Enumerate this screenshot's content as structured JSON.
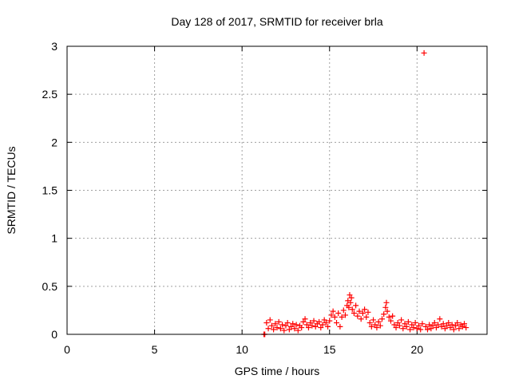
{
  "chart_data": {
    "type": "scatter",
    "title": "Day 128 of 2017, SRMTID for receiver brla",
    "xlabel": "GPS time / hours",
    "ylabel": "SRMTID / TECUs",
    "xlim": [
      0,
      24
    ],
    "ylim": [
      0,
      3
    ],
    "xticks": [
      0,
      5,
      10,
      15,
      20
    ],
    "yticks": [
      0,
      0.5,
      1,
      1.5,
      2,
      2.5,
      3
    ],
    "ytick_labels": [
      "0",
      "0.5",
      "1",
      "1.5",
      "2",
      "2.5",
      "3"
    ],
    "grid": true,
    "marker": "+",
    "series": [
      {
        "name": "SRMTID",
        "color": "#ff0000",
        "points": [
          [
            11.25,
            0.0
          ],
          [
            11.3,
            0.0
          ],
          [
            11.4,
            0.12
          ],
          [
            11.5,
            0.06
          ],
          [
            11.6,
            0.15
          ],
          [
            11.7,
            0.09
          ],
          [
            11.8,
            0.05
          ],
          [
            11.9,
            0.11
          ],
          [
            12.0,
            0.07
          ],
          [
            12.1,
            0.13
          ],
          [
            12.2,
            0.06
          ],
          [
            12.3,
            0.1
          ],
          [
            12.4,
            0.04
          ],
          [
            12.5,
            0.09
          ],
          [
            12.6,
            0.12
          ],
          [
            12.7,
            0.05
          ],
          [
            12.8,
            0.08
          ],
          [
            12.9,
            0.11
          ],
          [
            13.0,
            0.06
          ],
          [
            13.1,
            0.1
          ],
          [
            13.2,
            0.04
          ],
          [
            13.3,
            0.09
          ],
          [
            13.4,
            0.07
          ],
          [
            13.5,
            0.13
          ],
          [
            13.6,
            0.16
          ],
          [
            13.7,
            0.1
          ],
          [
            13.8,
            0.07
          ],
          [
            13.9,
            0.12
          ],
          [
            14.0,
            0.09
          ],
          [
            14.1,
            0.14
          ],
          [
            14.2,
            0.08
          ],
          [
            14.3,
            0.11
          ],
          [
            14.4,
            0.13
          ],
          [
            14.5,
            0.07
          ],
          [
            14.6,
            0.1
          ],
          [
            14.7,
            0.15
          ],
          [
            14.8,
            0.12
          ],
          [
            14.9,
            0.08
          ],
          [
            15.0,
            0.14
          ],
          [
            15.1,
            0.2
          ],
          [
            15.2,
            0.24
          ],
          [
            15.3,
            0.18
          ],
          [
            15.4,
            0.12
          ],
          [
            15.5,
            0.22
          ],
          [
            15.6,
            0.08
          ],
          [
            15.7,
            0.18
          ],
          [
            15.8,
            0.25
          ],
          [
            15.9,
            0.2
          ],
          [
            16.0,
            0.3
          ],
          [
            16.05,
            0.35
          ],
          [
            16.1,
            0.28
          ],
          [
            16.15,
            0.41
          ],
          [
            16.2,
            0.33
          ],
          [
            16.25,
            0.38
          ],
          [
            16.3,
            0.26
          ],
          [
            16.4,
            0.22
          ],
          [
            16.5,
            0.3
          ],
          [
            16.6,
            0.19
          ],
          [
            16.7,
            0.24
          ],
          [
            16.8,
            0.16
          ],
          [
            16.9,
            0.22
          ],
          [
            17.0,
            0.26
          ],
          [
            17.1,
            0.18
          ],
          [
            17.2,
            0.23
          ],
          [
            17.3,
            0.12
          ],
          [
            17.4,
            0.08
          ],
          [
            17.5,
            0.15
          ],
          [
            17.6,
            0.1
          ],
          [
            17.7,
            0.07
          ],
          [
            17.8,
            0.13
          ],
          [
            17.9,
            0.09
          ],
          [
            18.0,
            0.16
          ],
          [
            18.1,
            0.21
          ],
          [
            18.2,
            0.28
          ],
          [
            18.25,
            0.33
          ],
          [
            18.3,
            0.24
          ],
          [
            18.4,
            0.18
          ],
          [
            18.5,
            0.14
          ],
          [
            18.6,
            0.19
          ],
          [
            18.7,
            0.1
          ],
          [
            18.8,
            0.07
          ],
          [
            18.9,
            0.12
          ],
          [
            19.0,
            0.09
          ],
          [
            19.1,
            0.15
          ],
          [
            19.2,
            0.06
          ],
          [
            19.3,
            0.11
          ],
          [
            19.4,
            0.08
          ],
          [
            19.5,
            0.13
          ],
          [
            19.6,
            0.05
          ],
          [
            19.7,
            0.1
          ],
          [
            19.8,
            0.07
          ],
          [
            19.9,
            0.12
          ],
          [
            20.0,
            0.06
          ],
          [
            20.1,
            0.09
          ],
          [
            20.2,
            0.05
          ],
          [
            20.3,
            0.11
          ],
          [
            20.4,
            2.93
          ],
          [
            20.5,
            0.08
          ],
          [
            20.6,
            0.05
          ],
          [
            20.7,
            0.1
          ],
          [
            20.8,
            0.06
          ],
          [
            20.9,
            0.09
          ],
          [
            21.0,
            0.12
          ],
          [
            21.1,
            0.07
          ],
          [
            21.2,
            0.1
          ],
          [
            21.3,
            0.16
          ],
          [
            21.4,
            0.08
          ],
          [
            21.5,
            0.11
          ],
          [
            21.6,
            0.06
          ],
          [
            21.7,
            0.09
          ],
          [
            21.8,
            0.12
          ],
          [
            21.9,
            0.07
          ],
          [
            22.0,
            0.1
          ],
          [
            22.1,
            0.05
          ],
          [
            22.2,
            0.09
          ],
          [
            22.3,
            0.12
          ],
          [
            22.4,
            0.06
          ],
          [
            22.5,
            0.1
          ],
          [
            22.6,
            0.08
          ],
          [
            22.7,
            0.11
          ],
          [
            22.8,
            0.07
          ]
        ]
      }
    ]
  }
}
